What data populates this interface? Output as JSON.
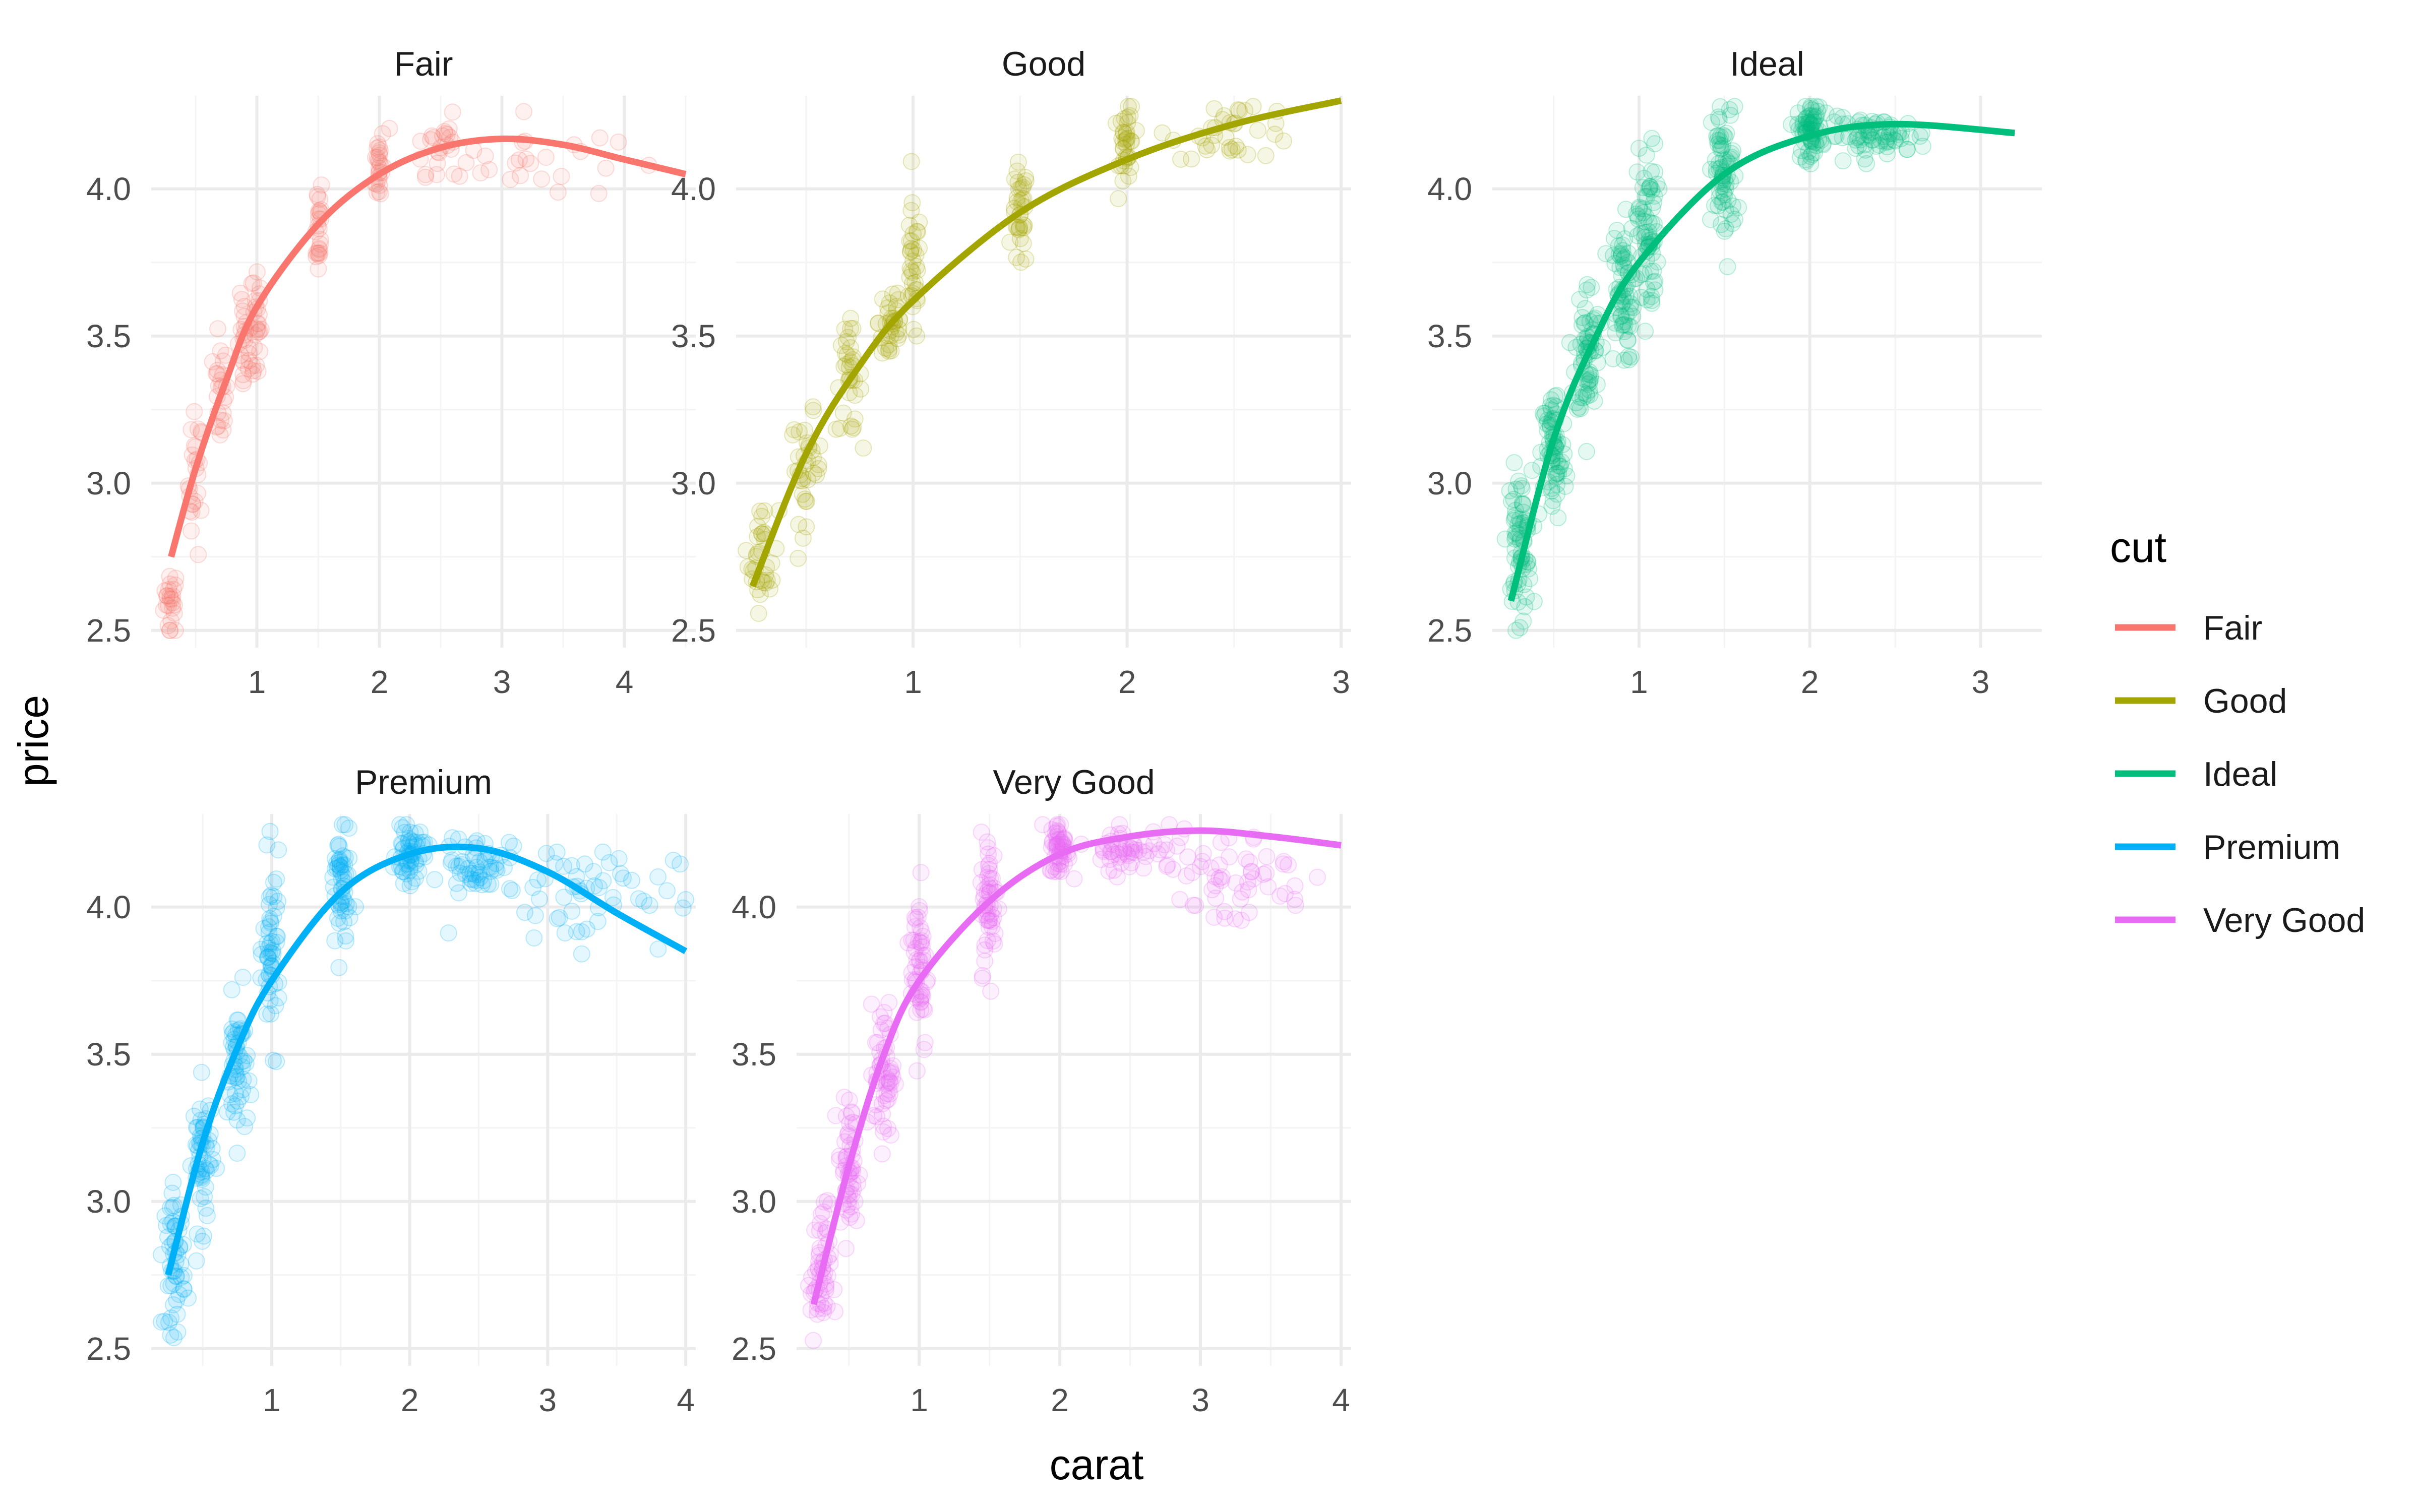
{
  "chart_data": {
    "type": "scatter",
    "facet_by": "cut",
    "xlabel": "carat",
    "ylabel": "price",
    "legend_title": "cut",
    "legend_position": "right",
    "grid": true,
    "point_alpha": 0.1,
    "smooth": "quadratic fit line per panel",
    "ylim": [
      2.45,
      4.3
    ],
    "yticks": [
      2.5,
      3.0,
      3.5,
      4.0
    ],
    "ytick_labels": [
      "2.5",
      "3.0",
      "3.5",
      "4.0"
    ],
    "panels": [
      {
        "name": "Fair",
        "color": "#F8766D",
        "xlim": [
          0.22,
          4.5
        ],
        "xticks": [
          1,
          2,
          3,
          4
        ],
        "xtick_labels": [
          "1",
          "2",
          "3",
          "4"
        ],
        "fit": [
          [
            0.3,
            2.75
          ],
          [
            0.5,
            3.05
          ],
          [
            0.75,
            3.35
          ],
          [
            1.0,
            3.6
          ],
          [
            1.5,
            3.88
          ],
          [
            2.0,
            4.05
          ],
          [
            2.5,
            4.14
          ],
          [
            3.0,
            4.17
          ],
          [
            3.5,
            4.15
          ],
          [
            4.0,
            4.1
          ],
          [
            4.5,
            4.05
          ]
        ],
        "clusters": [
          [
            0.3,
            2.6,
            0.05,
            0.1
          ],
          [
            0.5,
            3.0,
            0.05,
            0.2
          ],
          [
            0.7,
            3.3,
            0.05,
            0.15
          ],
          [
            0.9,
            3.45,
            0.05,
            0.15
          ],
          [
            1.0,
            3.55,
            0.03,
            0.2
          ],
          [
            1.5,
            3.88,
            0.03,
            0.15
          ],
          [
            2.0,
            4.08,
            0.03,
            0.12
          ],
          [
            2.5,
            4.15,
            0.2,
            0.08
          ],
          [
            3.2,
            4.1,
            0.6,
            0.12
          ]
        ],
        "points_per_cluster": 25
      },
      {
        "name": "Good",
        "color": "#A3A500",
        "xlim": [
          0.22,
          3.0
        ],
        "xticks": [
          1,
          2,
          3
        ],
        "xtick_labels": [
          "1",
          "2",
          "3"
        ],
        "fit": [
          [
            0.25,
            2.65
          ],
          [
            0.5,
            3.1
          ],
          [
            0.75,
            3.4
          ],
          [
            1.0,
            3.62
          ],
          [
            1.5,
            3.92
          ],
          [
            2.0,
            4.1
          ],
          [
            2.5,
            4.22
          ],
          [
            3.0,
            4.3
          ]
        ],
        "clusters": [
          [
            0.3,
            2.75,
            0.06,
            0.15
          ],
          [
            0.5,
            3.05,
            0.06,
            0.15
          ],
          [
            0.7,
            3.35,
            0.05,
            0.15
          ],
          [
            0.9,
            3.55,
            0.05,
            0.15
          ],
          [
            1.0,
            3.7,
            0.03,
            0.2
          ],
          [
            1.5,
            3.9,
            0.03,
            0.15
          ],
          [
            2.0,
            4.15,
            0.03,
            0.12
          ],
          [
            2.5,
            4.2,
            0.25,
            0.08
          ]
        ],
        "points_per_cluster": 35
      },
      {
        "name": "Ideal",
        "color": "#00BF7D",
        "xlim": [
          0.2,
          3.3
        ],
        "xticks": [
          1,
          2,
          3
        ],
        "xtick_labels": [
          "1",
          "2",
          "3"
        ],
        "fit": [
          [
            0.25,
            2.6
          ],
          [
            0.5,
            3.15
          ],
          [
            0.75,
            3.5
          ],
          [
            1.0,
            3.75
          ],
          [
            1.5,
            4.05
          ],
          [
            2.0,
            4.18
          ],
          [
            2.5,
            4.22
          ],
          [
            3.2,
            4.19
          ]
        ],
        "clusters": [
          [
            0.3,
            2.8,
            0.06,
            0.2
          ],
          [
            0.5,
            3.1,
            0.06,
            0.2
          ],
          [
            0.7,
            3.45,
            0.06,
            0.2
          ],
          [
            0.9,
            3.65,
            0.06,
            0.2
          ],
          [
            1.05,
            3.85,
            0.05,
            0.25
          ],
          [
            1.5,
            4.05,
            0.06,
            0.2
          ],
          [
            2.0,
            4.2,
            0.06,
            0.08
          ],
          [
            2.4,
            4.18,
            0.25,
            0.05
          ]
        ],
        "points_per_cluster": 70
      },
      {
        "name": "Premium",
        "color": "#00B0F6",
        "xlim": [
          0.2,
          4.0
        ],
        "xticks": [
          1,
          2,
          3,
          4
        ],
        "xtick_labels": [
          "1",
          "2",
          "3",
          "4"
        ],
        "fit": [
          [
            0.25,
            2.75
          ],
          [
            0.5,
            3.2
          ],
          [
            0.75,
            3.52
          ],
          [
            1.0,
            3.75
          ],
          [
            1.5,
            4.05
          ],
          [
            2.0,
            4.18
          ],
          [
            2.5,
            4.2
          ],
          [
            3.0,
            4.12
          ],
          [
            3.5,
            3.98
          ],
          [
            4.0,
            3.85
          ]
        ],
        "clusters": [
          [
            0.3,
            2.8,
            0.06,
            0.2
          ],
          [
            0.5,
            3.15,
            0.06,
            0.2
          ],
          [
            0.75,
            3.45,
            0.06,
            0.2
          ],
          [
            1.0,
            3.85,
            0.05,
            0.25
          ],
          [
            1.5,
            4.05,
            0.06,
            0.2
          ],
          [
            2.0,
            4.18,
            0.08,
            0.08
          ],
          [
            2.5,
            4.15,
            0.2,
            0.08
          ],
          [
            3.2,
            4.05,
            0.6,
            0.15
          ]
        ],
        "points_per_cluster": 55
      },
      {
        "name": "Very Good",
        "color": "#E76BF3",
        "xlim": [
          0.2,
          4.0
        ],
        "xticks": [
          1,
          2,
          3,
          4
        ],
        "xtick_labels": [
          "1",
          "2",
          "3",
          "4"
        ],
        "fit": [
          [
            0.25,
            2.65
          ],
          [
            0.5,
            3.12
          ],
          [
            0.75,
            3.5
          ],
          [
            1.0,
            3.75
          ],
          [
            1.5,
            4.02
          ],
          [
            2.0,
            4.18
          ],
          [
            2.5,
            4.24
          ],
          [
            3.0,
            4.26
          ],
          [
            3.5,
            4.24
          ],
          [
            4.0,
            4.21
          ]
        ],
        "clusters": [
          [
            0.3,
            2.75,
            0.06,
            0.2
          ],
          [
            0.5,
            3.1,
            0.06,
            0.2
          ],
          [
            0.75,
            3.45,
            0.06,
            0.2
          ],
          [
            1.0,
            3.8,
            0.05,
            0.25
          ],
          [
            1.5,
            4.02,
            0.05,
            0.2
          ],
          [
            2.0,
            4.2,
            0.06,
            0.08
          ],
          [
            2.5,
            4.2,
            0.25,
            0.06
          ],
          [
            3.2,
            4.1,
            0.5,
            0.15
          ]
        ],
        "points_per_cluster": 55
      }
    ]
  }
}
